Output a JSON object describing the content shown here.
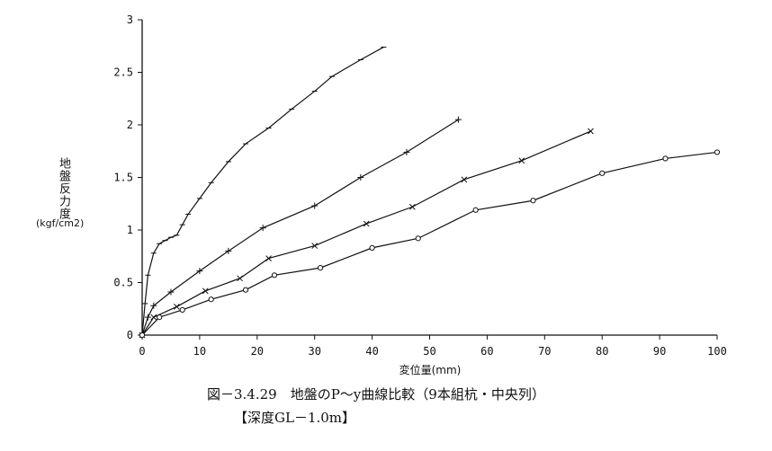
{
  "chart_data": {
    "type": "line",
    "xlabel": "変位量(mm)",
    "ylabel": "地盤反力度",
    "ylabel_unit": "(kgf/cm2)",
    "xlim": [
      0,
      100
    ],
    "ylim": [
      0,
      3
    ],
    "x_ticks": [
      "0",
      "10",
      "20",
      "30",
      "40",
      "50",
      "60",
      "70",
      "80",
      "90",
      "100"
    ],
    "y_ticks": [
      "0",
      "0.5",
      "1",
      "1.5",
      "2",
      "2.5",
      "3"
    ],
    "grid": false,
    "series": [
      {
        "marker": "-",
        "points": [
          [
            0,
            0
          ],
          [
            0.5,
            0.3
          ],
          [
            1,
            0.57
          ],
          [
            2,
            0.78
          ],
          [
            3,
            0.87
          ],
          [
            4,
            0.9
          ],
          [
            5,
            0.93
          ],
          [
            6,
            0.95
          ],
          [
            7,
            1.05
          ],
          [
            8,
            1.15
          ],
          [
            10,
            1.3
          ],
          [
            12,
            1.45
          ],
          [
            15,
            1.65
          ],
          [
            18,
            1.82
          ],
          [
            22,
            1.97
          ],
          [
            26,
            2.15
          ],
          [
            30,
            2.32
          ],
          [
            33,
            2.46
          ],
          [
            38,
            2.62
          ],
          [
            42,
            2.74
          ]
        ]
      },
      {
        "marker": "+",
        "points": [
          [
            0,
            0
          ],
          [
            1,
            0.17
          ],
          [
            2,
            0.28
          ],
          [
            5,
            0.41
          ],
          [
            10,
            0.61
          ],
          [
            15,
            0.8
          ],
          [
            21,
            1.02
          ],
          [
            30,
            1.23
          ],
          [
            38,
            1.5
          ],
          [
            46,
            1.74
          ],
          [
            55,
            2.05
          ]
        ]
      },
      {
        "marker": "x",
        "points": [
          [
            0,
            0
          ],
          [
            2,
            0.17
          ],
          [
            6,
            0.27
          ],
          [
            11,
            0.42
          ],
          [
            17,
            0.54
          ],
          [
            22,
            0.73
          ],
          [
            30,
            0.85
          ],
          [
            39,
            1.06
          ],
          [
            47,
            1.22
          ],
          [
            56,
            1.48
          ],
          [
            66,
            1.66
          ],
          [
            78,
            1.94
          ]
        ]
      },
      {
        "marker": "o",
        "points": [
          [
            0,
            0
          ],
          [
            3,
            0.17
          ],
          [
            7,
            0.24
          ],
          [
            12,
            0.34
          ],
          [
            18,
            0.43
          ],
          [
            23,
            0.57
          ],
          [
            31,
            0.64
          ],
          [
            40,
            0.83
          ],
          [
            48,
            0.92
          ],
          [
            58,
            1.19
          ],
          [
            68,
            1.28
          ],
          [
            80,
            1.54
          ],
          [
            91,
            1.68
          ],
          [
            100,
            1.74
          ]
        ]
      }
    ]
  },
  "caption": {
    "line1": "図－3.4.29　地盤のP～y曲線比較（9本組杭・中央列）",
    "line2": "【深度GL－1.0m】"
  }
}
